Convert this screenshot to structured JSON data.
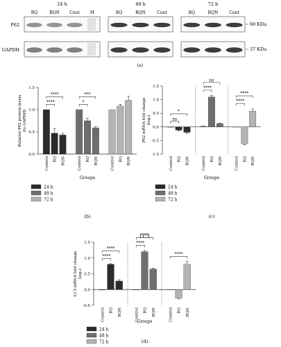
{
  "blot": {
    "groups": [
      {
        "time_label": "24 h",
        "lanes": [
          "RQ",
          "RQN",
          "Cont"
        ]
      },
      {
        "time_label": "48 h",
        "lanes": [
          "RQ",
          "RQN",
          "Cont"
        ]
      },
      {
        "time_label": "72 h",
        "lanes": [
          "RQ",
          "RQN",
          "Cont"
        ]
      }
    ],
    "marker_label": "M",
    "rows": [
      "P62",
      "GAPDH"
    ],
    "kda": [
      "60 KDa",
      "37 KDa"
    ],
    "panel_label": "(a)"
  },
  "colors": {
    "24h": "#2b2b2b",
    "48h": "#6e6e6e",
    "72h": "#b3b3b3",
    "error": "#333333"
  },
  "chart_data": [
    {
      "id": "b",
      "type": "bar",
      "panel_label": "(b)",
      "ylabel": "Relative P62 protein levels (to GAPDH)",
      "ylabel_lines": [
        "Relative P62 protein levels",
        "(to GAPDH)"
      ],
      "xlabel": "Groups",
      "ylim": [
        0,
        1.5
      ],
      "yticks": [
        "0.0",
        "0.5",
        "1.0",
        "1.5"
      ],
      "categories": [
        "Control",
        "RQ",
        "RQN"
      ],
      "series": [
        {
          "name": "24 h",
          "values": [
            1.0,
            0.47,
            0.43
          ],
          "errors": [
            0.0,
            0.1,
            0.04
          ]
        },
        {
          "name": "48 h",
          "values": [
            1.0,
            0.75,
            0.59
          ],
          "errors": [
            0.0,
            0.05,
            0.03
          ]
        },
        {
          "name": "72 h",
          "values": [
            1.0,
            1.08,
            1.21
          ],
          "errors": [
            0.0,
            0.04,
            0.09
          ]
        }
      ],
      "annotations": [
        {
          "group": 0,
          "from": 0,
          "to": 1,
          "label": "****"
        },
        {
          "group": 0,
          "from": 0,
          "to": 2,
          "label": "****"
        },
        {
          "group": 1,
          "from": 0,
          "to": 1,
          "label": "*"
        },
        {
          "group": 1,
          "from": 0,
          "to": 2,
          "label": "***"
        }
      ],
      "legend": [
        "24 h",
        "48 h",
        "72 h"
      ],
      "separators": false
    },
    {
      "id": "c",
      "type": "bar",
      "panel_label": "(c)",
      "ylabel": "P62 mRNA fold change (log2)",
      "ylabel_lines": [
        "P62 mRNA fold change",
        "(log₂)"
      ],
      "xlabel": "Groups",
      "ylim": [
        -1.0,
        1.5
      ],
      "yticks": [
        "-1.0",
        "-0.5",
        "0.0",
        "0.5",
        "1.0",
        "1.5"
      ],
      "categories": [
        "Control",
        "RQ",
        "RQN"
      ],
      "series": [
        {
          "name": "24 h",
          "values": [
            0.0,
            -0.12,
            -0.2
          ],
          "errors": [
            0.0,
            0.03,
            0.04
          ]
        },
        {
          "name": "48 h",
          "values": [
            0.02,
            1.1,
            0.12
          ],
          "errors": [
            0.01,
            0.05,
            0.02
          ]
        },
        {
          "name": "72 h",
          "values": [
            0.0,
            -0.62,
            0.58
          ],
          "errors": [
            0.0,
            0.04,
            0.08
          ]
        }
      ],
      "annotations": [
        {
          "group": 0,
          "from": 0,
          "to": 1,
          "label": "ns"
        },
        {
          "group": 0,
          "from": 0,
          "to": 2,
          "label": "*"
        },
        {
          "group": 1,
          "from": 0,
          "to": 1,
          "label": "****"
        },
        {
          "group": 1,
          "from": 0,
          "to": 2,
          "label": "ns"
        },
        {
          "group": 2,
          "from": 0,
          "to": 1,
          "label": "****"
        },
        {
          "group": 2,
          "from": 0,
          "to": 2,
          "label": "****"
        }
      ],
      "legend": [
        "24 h",
        "48 h",
        "72 h"
      ],
      "separators": true
    },
    {
      "id": "d",
      "type": "bar",
      "panel_label": "(d)",
      "title": "LC3",
      "ylabel": "LC3 mRNA fold change (log2)",
      "ylabel_lines": [
        "LC3 mRNA fold change",
        "(log₂)"
      ],
      "xlabel": "Groups",
      "ylim": [
        -0.5,
        1.5
      ],
      "yticks": [
        "-0.5",
        "0.0",
        "0.5",
        "1.0",
        "1.5"
      ],
      "categories": [
        "Control",
        "RQ",
        "RQN"
      ],
      "series": [
        {
          "name": "24 h",
          "values": [
            0.0,
            0.8,
            0.27
          ],
          "errors": [
            0.0,
            0.02,
            0.04
          ]
        },
        {
          "name": "48 h",
          "values": [
            0.0,
            1.2,
            0.65
          ],
          "errors": [
            0.0,
            0.04,
            0.03
          ]
        },
        {
          "name": "72 h",
          "values": [
            0.0,
            -0.27,
            0.8
          ],
          "errors": [
            0.0,
            0.03,
            0.09
          ]
        }
      ],
      "annotations": [
        {
          "group": 0,
          "from": 0,
          "to": 1,
          "label": "****"
        },
        {
          "group": 0,
          "from": 0,
          "to": 2,
          "label": "****"
        },
        {
          "group": 1,
          "from": 0,
          "to": 1,
          "label": "****"
        },
        {
          "group": 1,
          "from": 0,
          "to": 2,
          "label": "****"
        },
        {
          "group": 2,
          "from": 0,
          "to": 2,
          "label": "****"
        }
      ],
      "legend": [
        "24 h",
        "48 h",
        "72 h"
      ],
      "separators": true
    }
  ]
}
